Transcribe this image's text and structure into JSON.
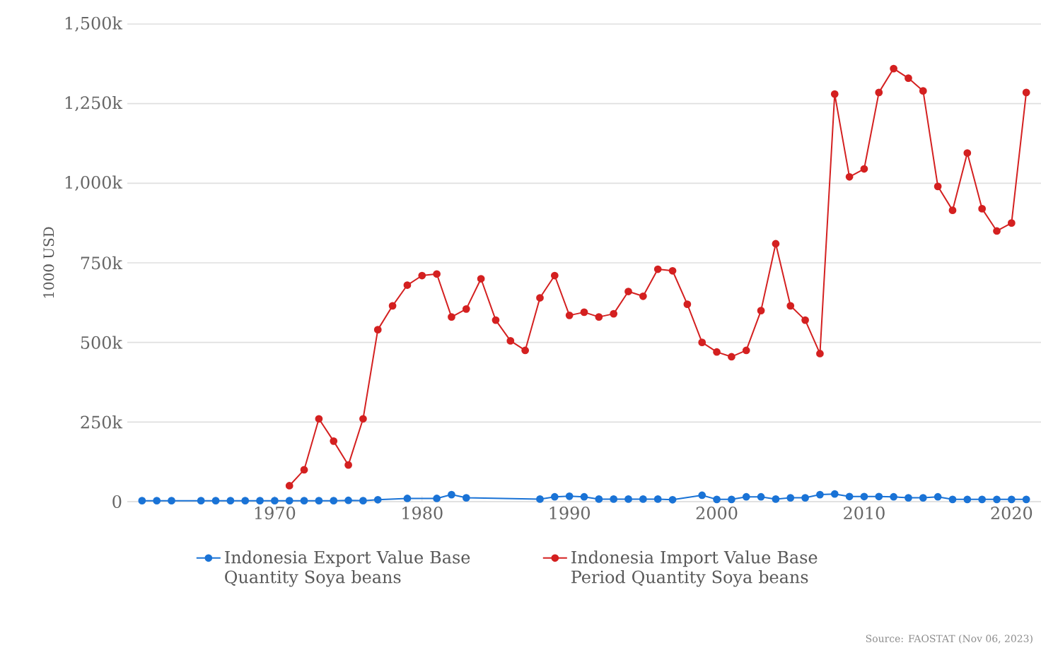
{
  "chart_data": {
    "type": "line",
    "ylabel": "1000 USD",
    "xlim": [
      1960,
      2022
    ],
    "ylim": [
      0,
      1500000
    ],
    "xticks": [
      1970,
      1980,
      1990,
      2000,
      2010,
      2020
    ],
    "yticks": [
      0,
      {
        "value": 250000,
        "label": "250k"
      },
      {
        "value": 500000,
        "label": "500k"
      },
      {
        "value": 750000,
        "label": "750k"
      },
      {
        "value": 1000000,
        "label": "1,000k"
      },
      {
        "value": 1250000,
        "label": "1,250k"
      },
      {
        "value": 1500000,
        "label": "1,500k"
      }
    ],
    "grid": "y",
    "legend": "bottom",
    "marker": "circle",
    "line_style": "solid",
    "series": [
      {
        "name": "Indonesia Export Value Base Quantity Soya beans",
        "color": "#1a73d6",
        "x": [
          1961,
          1962,
          1963,
          1965,
          1966,
          1967,
          1968,
          1969,
          1970,
          1971,
          1972,
          1973,
          1974,
          1975,
          1976,
          1977,
          1979,
          1981,
          1982,
          1983,
          1988,
          1989,
          1990,
          1991,
          1992,
          1993,
          1994,
          1995,
          1996,
          1997,
          1998,
          1999,
          2000,
          2001,
          2002,
          2003,
          2004,
          2005,
          2006,
          2007,
          2008,
          2009,
          2010,
          2011,
          2012,
          2013,
          2014,
          2015,
          2016,
          2017,
          2018,
          2019,
          2020,
          2021
        ],
        "values": [
          3000,
          3000,
          3000,
          3000,
          3000,
          3000,
          3000,
          3000,
          3000,
          3000,
          3000,
          3000,
          3000,
          4000,
          3000,
          6000,
          10000,
          10000,
          22000,
          12000,
          8000,
          15000,
          17000,
          15000,
          8000,
          8000,
          8000,
          8000,
          8000,
          6000,
          null,
          20000,
          7000,
          7000,
          15000,
          15000,
          8000,
          12000,
          12000,
          22000,
          24000,
          16000,
          16000,
          16000,
          15000,
          12000,
          12000,
          15000,
          7000,
          7000,
          7000,
          7000,
          7000,
          7000
        ]
      },
      {
        "name": "Indonesia Import Value Base Period Quantity Soya beans",
        "color": "#d42020",
        "x": [
          1971,
          1972,
          1973,
          1974,
          1975,
          1976,
          1977,
          1978,
          1979,
          1980,
          1981,
          1982,
          1983,
          1984,
          1985,
          1986,
          1987,
          1988,
          1989,
          1990,
          1991,
          1992,
          1993,
          1994,
          1995,
          1996,
          1997,
          1998,
          1999,
          2000,
          2001,
          2002,
          2003,
          2004,
          2005,
          2006,
          2007,
          2008,
          2009,
          2010,
          2011,
          2012,
          2013,
          2014,
          2015,
          2016,
          2017,
          2018,
          2019,
          2020,
          2021
        ],
        "values": [
          50000,
          100000,
          260000,
          190000,
          115000,
          260000,
          540000,
          615000,
          680000,
          710000,
          715000,
          580000,
          605000,
          700000,
          570000,
          505000,
          475000,
          640000,
          710000,
          585000,
          595000,
          580000,
          590000,
          660000,
          645000,
          730000,
          725000,
          620000,
          500000,
          470000,
          455000,
          475000,
          600000,
          810000,
          615000,
          570000,
          465000,
          1280000,
          1020000,
          1045000,
          1285000,
          1360000,
          1330000,
          1290000,
          990000,
          915000,
          1095000,
          920000,
          850000,
          875000,
          1285000
        ]
      }
    ],
    "annotations": [
      "Source: FAOSTAT (Nov 06, 2023)"
    ]
  }
}
